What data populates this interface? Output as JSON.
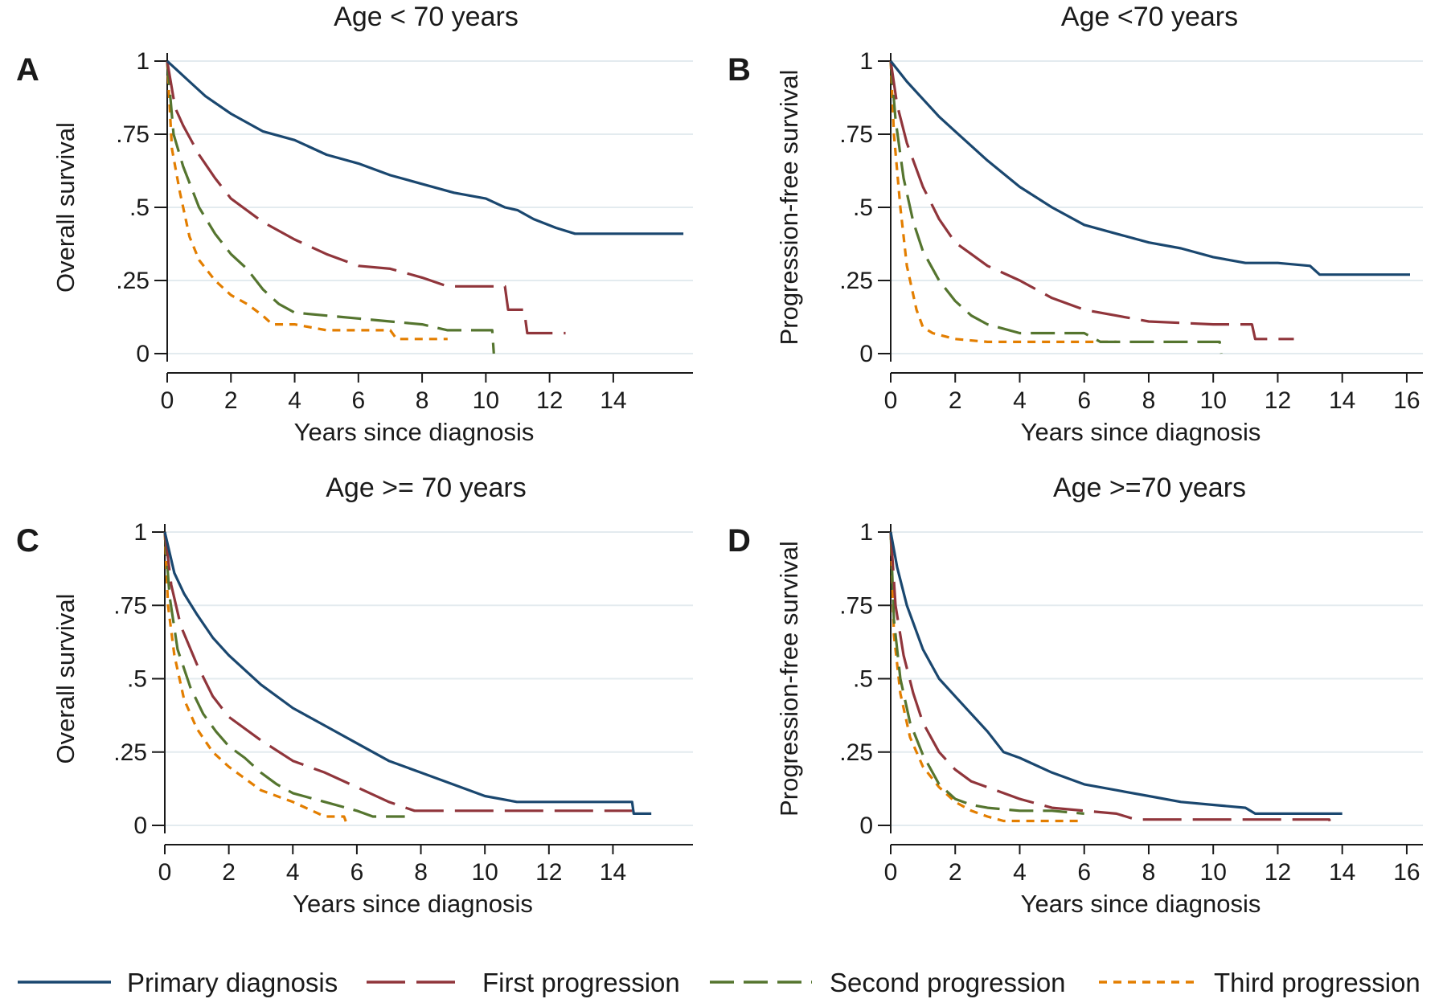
{
  "colors": {
    "primary": "#1a476f",
    "first": "#90353b",
    "second": "#55752f",
    "third": "#e37e00",
    "grid": "#e3ebef"
  },
  "legend": {
    "primary": "Primary diagnosis",
    "first": "First progression",
    "second": "Second progression",
    "third": "Third progression"
  },
  "chart_data": [
    {
      "panel": "A",
      "type": "line",
      "title": "Age < 70 years",
      "xlabel": "Years since diagnosis",
      "ylabel": "Overall survival",
      "xlim": [
        0,
        16.5
      ],
      "ylim": [
        0,
        1
      ],
      "xticks": [
        "0",
        "2",
        "4",
        "6",
        "8",
        "10",
        "12",
        "14"
      ],
      "yticks": [
        "0",
        ".25",
        ".5",
        ".75",
        "1"
      ],
      "series": [
        {
          "key": "primary",
          "name": "Primary diagnosis",
          "step": false,
          "x": [
            0,
            0.3,
            0.7,
            1.2,
            2,
            3,
            4,
            5,
            6,
            7,
            8,
            9,
            10,
            10.6,
            11,
            11.5,
            12.2,
            12.8,
            16.2
          ],
          "y": [
            1,
            0.97,
            0.93,
            0.88,
            0.82,
            0.76,
            0.73,
            0.68,
            0.65,
            0.61,
            0.58,
            0.55,
            0.53,
            0.5,
            0.49,
            0.46,
            0.43,
            0.41,
            0.41
          ]
        },
        {
          "key": "first",
          "name": "First progression",
          "step": false,
          "x": [
            0,
            0.25,
            0.5,
            1,
            1.5,
            2,
            3,
            4,
            5,
            6,
            7,
            8,
            8.8,
            10.6,
            10.7,
            11.2,
            11.3,
            12.5
          ],
          "y": [
            1,
            0.84,
            0.78,
            0.68,
            0.6,
            0.53,
            0.45,
            0.39,
            0.34,
            0.3,
            0.29,
            0.26,
            0.23,
            0.23,
            0.15,
            0.15,
            0.07,
            0.07
          ]
        },
        {
          "key": "second",
          "name": "Second progression",
          "step": false,
          "x": [
            0,
            0.2,
            0.5,
            1,
            1.5,
            2,
            2.5,
            3,
            3.5,
            4,
            5,
            6,
            7,
            8,
            8.8,
            10.2,
            10.25
          ],
          "y": [
            1,
            0.75,
            0.64,
            0.5,
            0.41,
            0.34,
            0.29,
            0.22,
            0.17,
            0.14,
            0.13,
            0.12,
            0.11,
            0.1,
            0.08,
            0.08,
            0
          ]
        },
        {
          "key": "third",
          "name": "Third progression",
          "step": false,
          "x": [
            0,
            0.15,
            0.4,
            0.7,
            1,
            1.5,
            2,
            2.5,
            3,
            3.3,
            4,
            5,
            6,
            7,
            7.2,
            8.8
          ],
          "y": [
            1,
            0.7,
            0.55,
            0.4,
            0.32,
            0.25,
            0.2,
            0.17,
            0.13,
            0.1,
            0.1,
            0.08,
            0.08,
            0.08,
            0.05,
            0.05
          ]
        }
      ]
    },
    {
      "panel": "B",
      "type": "line",
      "title": "Age <70 years",
      "xlabel": "Years since diagnosis",
      "ylabel": "Progression-free survival",
      "xlim": [
        0,
        16.5
      ],
      "ylim": [
        0,
        1
      ],
      "xticks": [
        "0",
        "2",
        "4",
        "6",
        "8",
        "10",
        "12",
        "14",
        "16"
      ],
      "yticks": [
        "0",
        ".25",
        ".5",
        ".75",
        "1"
      ],
      "series": [
        {
          "key": "primary",
          "name": "Primary diagnosis",
          "step": false,
          "x": [
            0,
            0.5,
            1,
            1.5,
            2,
            3,
            4,
            5,
            6,
            7,
            8,
            9,
            10,
            11,
            12,
            13,
            13.3,
            16.1
          ],
          "y": [
            1,
            0.93,
            0.87,
            0.81,
            0.76,
            0.66,
            0.57,
            0.5,
            0.44,
            0.41,
            0.38,
            0.36,
            0.33,
            0.31,
            0.31,
            0.3,
            0.27,
            0.27
          ]
        },
        {
          "key": "first",
          "name": "First progression",
          "step": false,
          "x": [
            0,
            0.2,
            0.5,
            1,
            1.5,
            2,
            2.5,
            3,
            4,
            5,
            6,
            7,
            8,
            10,
            11.2,
            11.3,
            12.5
          ],
          "y": [
            1,
            0.85,
            0.72,
            0.57,
            0.46,
            0.38,
            0.34,
            0.3,
            0.25,
            0.19,
            0.15,
            0.13,
            0.11,
            0.1,
            0.1,
            0.05,
            0.05
          ]
        },
        {
          "key": "second",
          "name": "Second progression",
          "step": false,
          "x": [
            0,
            0.15,
            0.4,
            0.7,
            1,
            1.5,
            2,
            2.5,
            3,
            4,
            5,
            6,
            6.5,
            10.2,
            10.25
          ],
          "y": [
            1,
            0.8,
            0.6,
            0.45,
            0.35,
            0.25,
            0.18,
            0.13,
            0.1,
            0.07,
            0.07,
            0.07,
            0.04,
            0.04,
            0
          ]
        },
        {
          "key": "third",
          "name": "Third progression",
          "step": false,
          "x": [
            0,
            0.1,
            0.3,
            0.5,
            0.8,
            1,
            1.3,
            2,
            3,
            4,
            5,
            6,
            7
          ],
          "y": [
            1,
            0.75,
            0.5,
            0.3,
            0.15,
            0.09,
            0.07,
            0.05,
            0.04,
            0.04,
            0.04,
            0.04,
            0.04
          ]
        }
      ]
    },
    {
      "panel": "C",
      "type": "line",
      "title": "Age >= 70 years",
      "xlabel": "Years since diagnosis",
      "ylabel": "Overall survival",
      "xlim": [
        0,
        16.5
      ],
      "ylim": [
        0,
        1
      ],
      "xticks": [
        "0",
        "2",
        "4",
        "6",
        "8",
        "10",
        "12",
        "14"
      ],
      "yticks": [
        "0",
        ".25",
        ".5",
        ".75",
        "1"
      ],
      "series": [
        {
          "key": "primary",
          "name": "Primary diagnosis",
          "step": false,
          "x": [
            0,
            0.3,
            0.6,
            1,
            1.5,
            2,
            3,
            4,
            5,
            6,
            7,
            8,
            9,
            10,
            11,
            12,
            14.6,
            14.65,
            15.2
          ],
          "y": [
            1,
            0.86,
            0.79,
            0.72,
            0.64,
            0.58,
            0.48,
            0.4,
            0.34,
            0.28,
            0.22,
            0.18,
            0.14,
            0.1,
            0.08,
            0.08,
            0.08,
            0.04,
            0.04
          ]
        },
        {
          "key": "first",
          "name": "First progression",
          "step": false,
          "x": [
            0,
            0.2,
            0.5,
            1,
            1.5,
            2,
            3,
            4,
            5,
            6,
            7,
            7.8,
            10,
            14.6
          ],
          "y": [
            1,
            0.82,
            0.68,
            0.55,
            0.44,
            0.37,
            0.29,
            0.22,
            0.18,
            0.13,
            0.08,
            0.05,
            0.05,
            0.05
          ]
        },
        {
          "key": "second",
          "name": "Second progression",
          "step": false,
          "x": [
            0,
            0.15,
            0.4,
            0.8,
            1.2,
            1.6,
            2,
            2.5,
            3,
            3.5,
            4,
            5,
            6,
            6.5,
            7.5
          ],
          "y": [
            1,
            0.78,
            0.6,
            0.47,
            0.38,
            0.32,
            0.27,
            0.23,
            0.18,
            0.14,
            0.11,
            0.08,
            0.05,
            0.03,
            0.03
          ]
        },
        {
          "key": "third",
          "name": "Third progression",
          "step": false,
          "x": [
            0,
            0.1,
            0.3,
            0.6,
            1,
            1.5,
            2,
            2.5,
            3,
            4,
            5,
            5.6,
            5.7
          ],
          "y": [
            1,
            0.75,
            0.58,
            0.43,
            0.33,
            0.25,
            0.2,
            0.16,
            0.12,
            0.08,
            0.03,
            0.03,
            0
          ]
        }
      ]
    },
    {
      "panel": "D",
      "type": "line",
      "title": "Age >=70 years",
      "xlabel": "Years since diagnosis",
      "ylabel": "Progression-free survival",
      "xlim": [
        0,
        16.5
      ],
      "ylim": [
        0,
        1
      ],
      "xticks": [
        "0",
        "2",
        "4",
        "6",
        "8",
        "10",
        "12",
        "14",
        "16"
      ],
      "yticks": [
        "0",
        ".25",
        ".5",
        ".75",
        "1"
      ],
      "series": [
        {
          "key": "primary",
          "name": "Primary diagnosis",
          "step": false,
          "x": [
            0,
            0.2,
            0.5,
            1,
            1.5,
            2,
            2.5,
            3,
            3.5,
            4,
            5,
            6,
            7,
            8,
            9,
            10,
            11,
            11.3,
            14
          ],
          "y": [
            1,
            0.88,
            0.75,
            0.6,
            0.5,
            0.44,
            0.38,
            0.32,
            0.25,
            0.23,
            0.18,
            0.14,
            0.12,
            0.1,
            0.08,
            0.07,
            0.06,
            0.04,
            0.04
          ]
        },
        {
          "key": "first",
          "name": "First progression",
          "step": false,
          "x": [
            0,
            0.15,
            0.4,
            0.7,
            1,
            1.5,
            2,
            2.5,
            3,
            4,
            5,
            6,
            7,
            7.6,
            13.6,
            13.65
          ],
          "y": [
            1,
            0.75,
            0.58,
            0.45,
            0.35,
            0.25,
            0.19,
            0.15,
            0.13,
            0.09,
            0.06,
            0.05,
            0.04,
            0.02,
            0.02,
            0
          ]
        },
        {
          "key": "second",
          "name": "Second progression",
          "step": false,
          "x": [
            0,
            0.1,
            0.3,
            0.6,
            1,
            1.5,
            2,
            2.5,
            3,
            4,
            5,
            6
          ],
          "y": [
            1,
            0.7,
            0.5,
            0.35,
            0.24,
            0.14,
            0.09,
            0.07,
            0.06,
            0.05,
            0.05,
            0.04
          ]
        },
        {
          "key": "third",
          "name": "Third progression",
          "step": false,
          "x": [
            0,
            0.1,
            0.3,
            0.6,
            1,
            1.5,
            2,
            2.5,
            3,
            3.5,
            5,
            5.8
          ],
          "y": [
            1,
            0.65,
            0.45,
            0.3,
            0.2,
            0.13,
            0.08,
            0.05,
            0.03,
            0.015,
            0.015,
            0.015
          ]
        }
      ]
    }
  ]
}
